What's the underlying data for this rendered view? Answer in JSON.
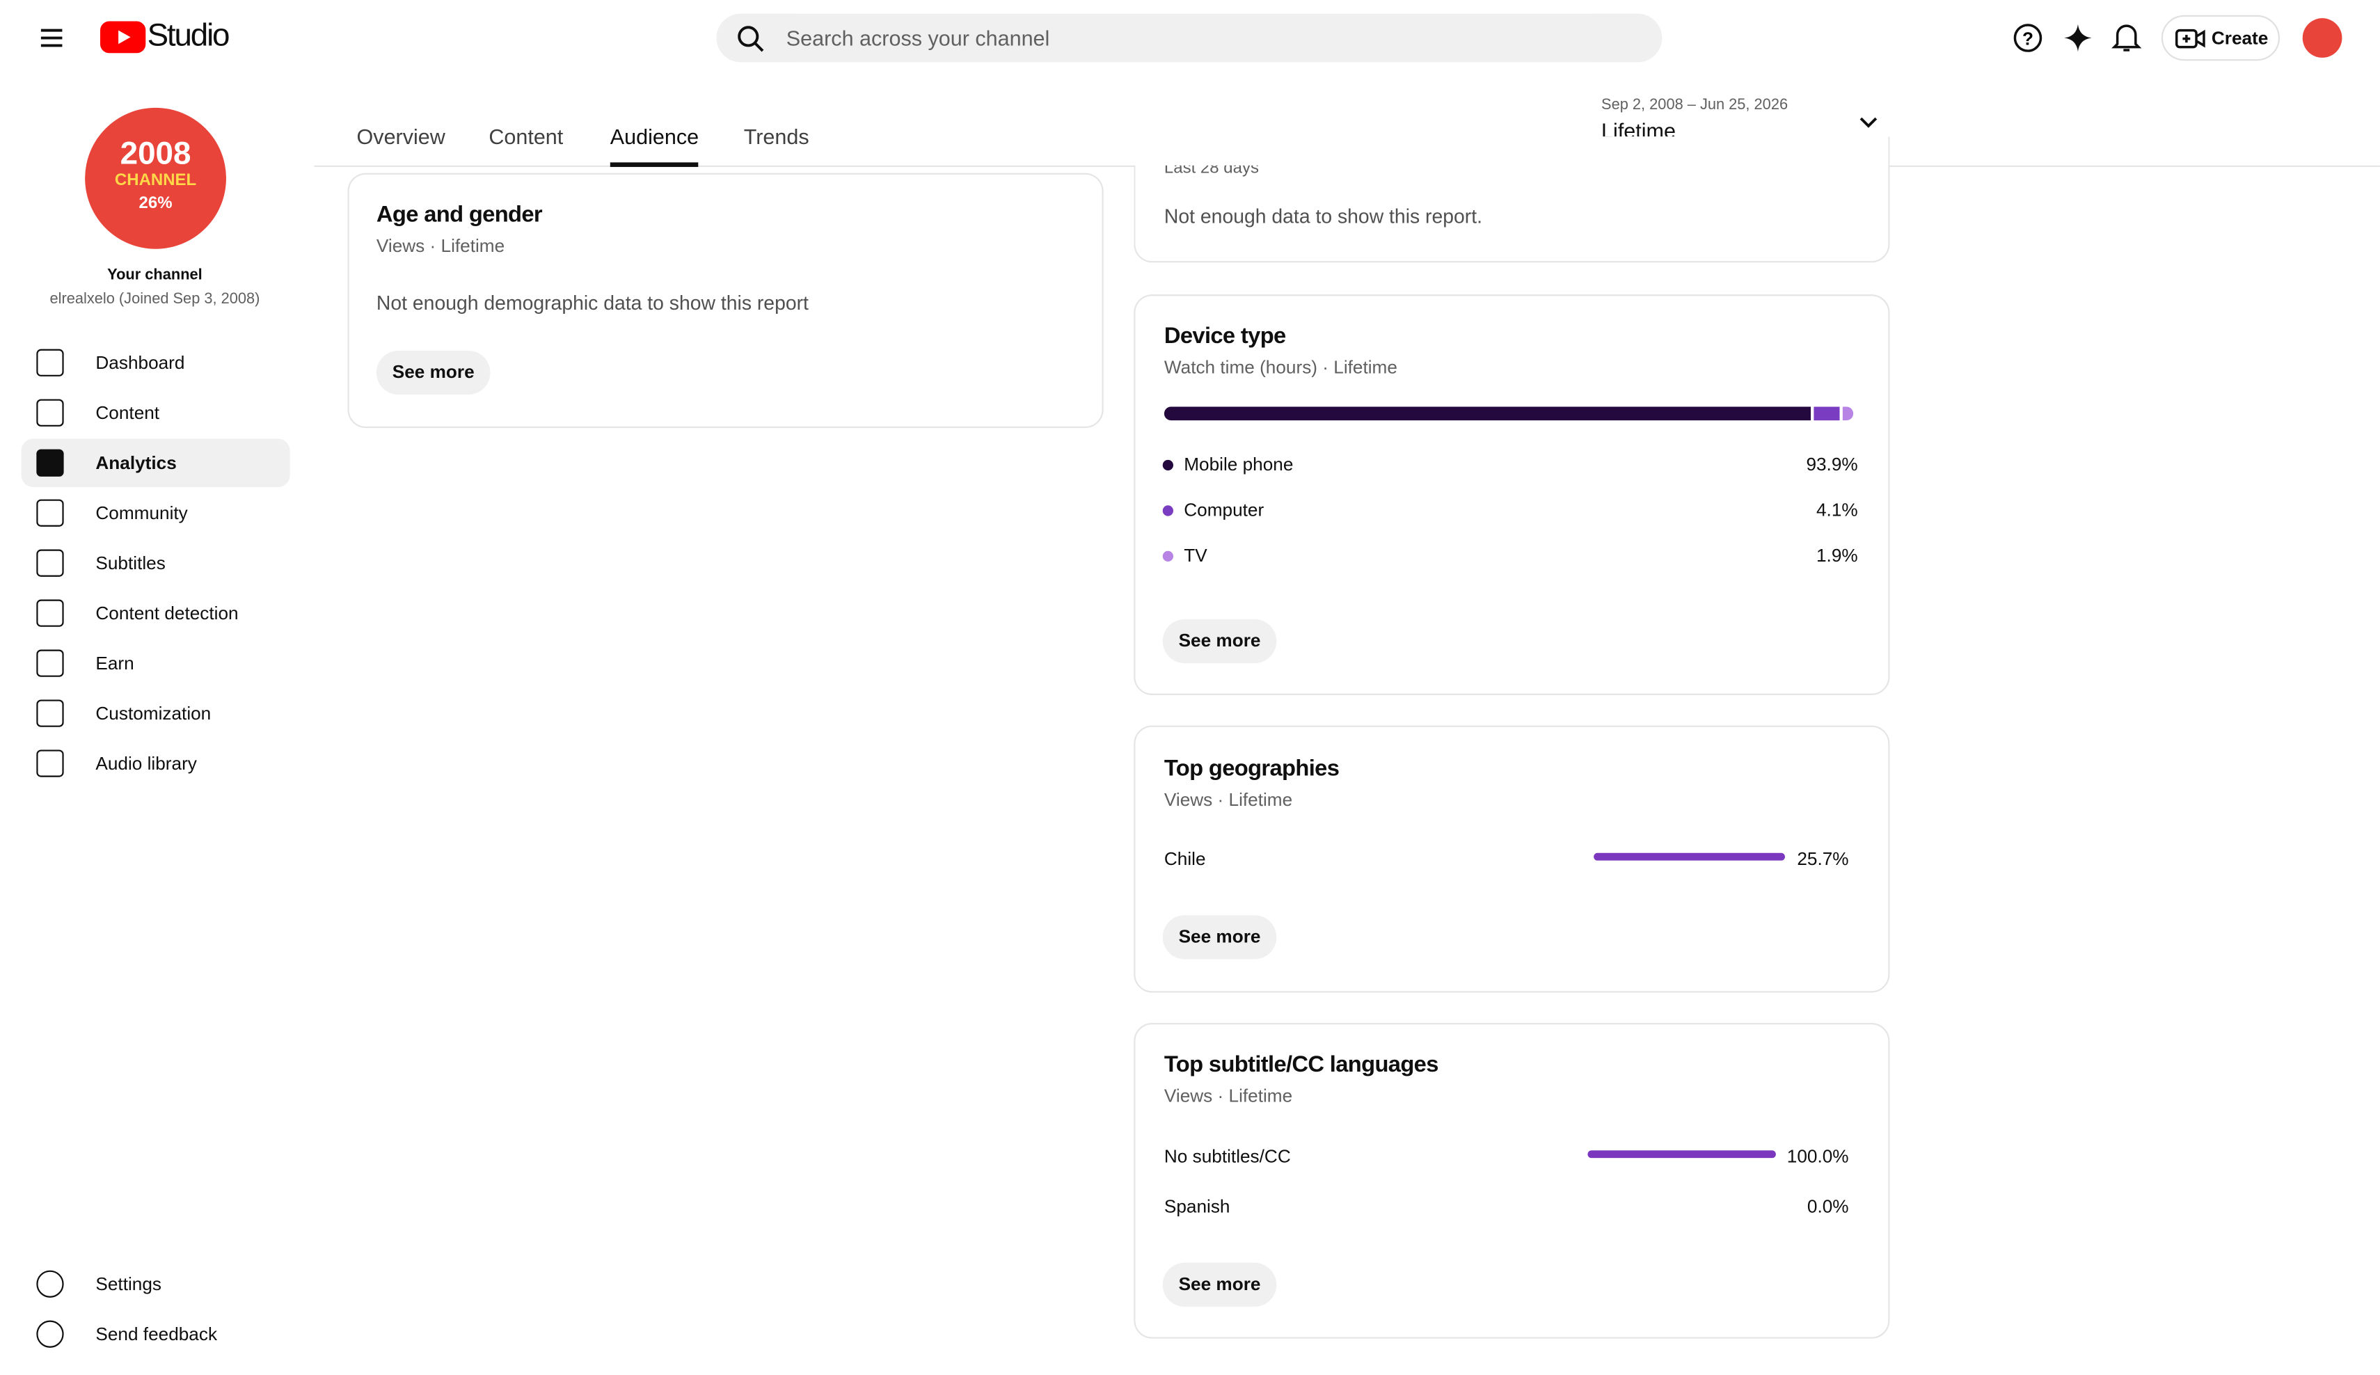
{
  "header": {
    "logo": "Studio",
    "search": "Search across your channel",
    "create": "Create"
  },
  "sidebar": {
    "avatar": [
      "2008",
      "CHANNEL",
      "26%"
    ],
    "channel_title": "Your channel",
    "channel_sub": "elrealxelo (Joined Sep 3, 2008)",
    "nav": [
      "Dashboard",
      "Content",
      "Analytics",
      "Community",
      "Subtitles",
      "Content detection",
      "Earn",
      "Customization",
      "Audio library"
    ],
    "active": 2,
    "bottom_nav": [
      "Settings",
      "Send feedback"
    ]
  },
  "tabs": {
    "items": [
      "Overview",
      "Content",
      "Audience",
      "Trends"
    ],
    "active": 2
  },
  "date_range": {
    "range": "Sep 2, 2008 – Jun 25, 2026",
    "label": "Lifetime"
  },
  "cards": {
    "age_gender": {
      "title": "Age and gender",
      "subtitle": "Views · Lifetime",
      "message": "Not enough demographic data to show this report",
      "button": "See more"
    },
    "partial": {
      "subtitle": "Last 28 days",
      "message": "Not enough data to show this report."
    },
    "device": {
      "title": "Device type",
      "subtitle": "Watch time (hours) · Lifetime",
      "button": "See more",
      "items": [
        {
          "name": "Mobile phone",
          "value": 93.9,
          "label": "93.9%",
          "color": "#24093f"
        },
        {
          "name": "Computer",
          "value": 4.1,
          "label": "4.1%",
          "color": "#7a3cc0"
        },
        {
          "name": "TV",
          "value": 1.9,
          "label": "1.9%",
          "color": "#b784e6"
        }
      ]
    },
    "geographies": {
      "title": "Top geographies",
      "subtitle": "Views · Lifetime",
      "button": "See more",
      "items": [
        {
          "name": "Chile",
          "value": 25.7,
          "label": "25.7%"
        }
      ]
    },
    "subtitles": {
      "title": "Top subtitle/CC languages",
      "subtitle": "Views · Lifetime",
      "button": "See more",
      "items": [
        {
          "name": "No subtitles/CC",
          "value": 100.0,
          "label": "100.0%"
        },
        {
          "name": "Spanish",
          "value": 0.0,
          "label": "0.0%"
        }
      ]
    }
  }
}
